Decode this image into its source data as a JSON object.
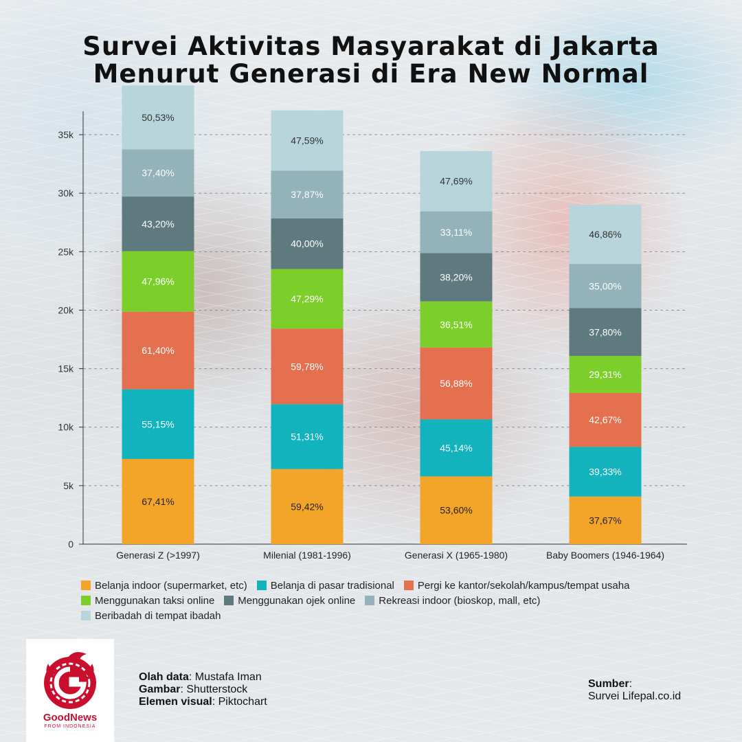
{
  "colors": {
    "segments": [
      "#f2a529",
      "#12b3bc",
      "#e5704f",
      "#7ccf2a",
      "#5f7a7f",
      "#93b2b9",
      "#b7d5db"
    ],
    "brand_red": "#c8102e"
  },
  "header": {
    "title_line1": "Survei Aktivitas Masyarakat di Jakarta",
    "title_line2": "Menurut Generasi di Era New Normal"
  },
  "chart_data": {
    "type": "bar",
    "stacked": true,
    "ylim": [
      0,
      37000
    ],
    "yticks": [
      0,
      5000,
      10000,
      15000,
      20000,
      25000,
      30000,
      35000
    ],
    "ytick_labels": [
      "0",
      "5k",
      "10k",
      "15k",
      "20k",
      "25k",
      "30k",
      "35k"
    ],
    "grid": "horizontal dashed",
    "categories": [
      "Generasi Z (>1997)",
      "Milenial (1981-1996)",
      "Generasi X (1965-1980)",
      "Baby Boomers (1946-1964)"
    ],
    "series": [
      {
        "name": "Belanja indoor (supermarket, etc)",
        "values": [
          67.41,
          59.42,
          53.6,
          37.67
        ],
        "labels": [
          "67,41%",
          "59,42%",
          "53,60%",
          "37,67%"
        ]
      },
      {
        "name": "Belanja di pasar tradisional",
        "values": [
          55.15,
          51.31,
          45.14,
          39.33
        ],
        "labels": [
          "55,15%",
          "51,31%",
          "45,14%",
          "39,33%"
        ]
      },
      {
        "name": "Pergi ke kantor/sekolah/kampus/tempat usaha",
        "values": [
          61.4,
          59.78,
          56.88,
          42.67
        ],
        "labels": [
          "61,40%",
          "59,78%",
          "56,88%",
          "42,67%"
        ]
      },
      {
        "name": "Menggunakan taksi online",
        "values": [
          47.96,
          47.29,
          36.51,
          29.31
        ],
        "labels": [
          "47,96%",
          "47,29%",
          "36,51%",
          "29,31%"
        ]
      },
      {
        "name": "Menggunakan ojek online",
        "values": [
          43.2,
          40.0,
          38.2,
          37.8
        ],
        "labels": [
          "43,20%",
          "40,00%",
          "38,20%",
          "37,80%"
        ]
      },
      {
        "name": "Rekreasi indoor (bioskop, mall, etc)",
        "values": [
          37.4,
          37.87,
          33.11,
          35.0
        ],
        "labels": [
          "37,40%",
          "37,87%",
          "33,11%",
          "35,00%"
        ]
      },
      {
        "name": "Beribadah di tempat ibadah",
        "values": [
          50.53,
          47.59,
          47.69,
          46.86
        ],
        "labels": [
          "50,53%",
          "47,59%",
          "47,69%",
          "46,86%"
        ]
      }
    ],
    "legend_position": "bottom"
  },
  "logo": {
    "name": "GoodNews",
    "sub": "FROM INDONESIA"
  },
  "credits": {
    "olah_label": "Olah data",
    "olah_value": ": Mustafa Iman",
    "gambar_label": "Gambar",
    "gambar_value": ": Shutterstock",
    "elemen_label": "Elemen visual",
    "elemen_value": ": Piktochart"
  },
  "source": {
    "label": "Sumber",
    "colon": ":",
    "value": "Survei Lifepal.co.id"
  }
}
